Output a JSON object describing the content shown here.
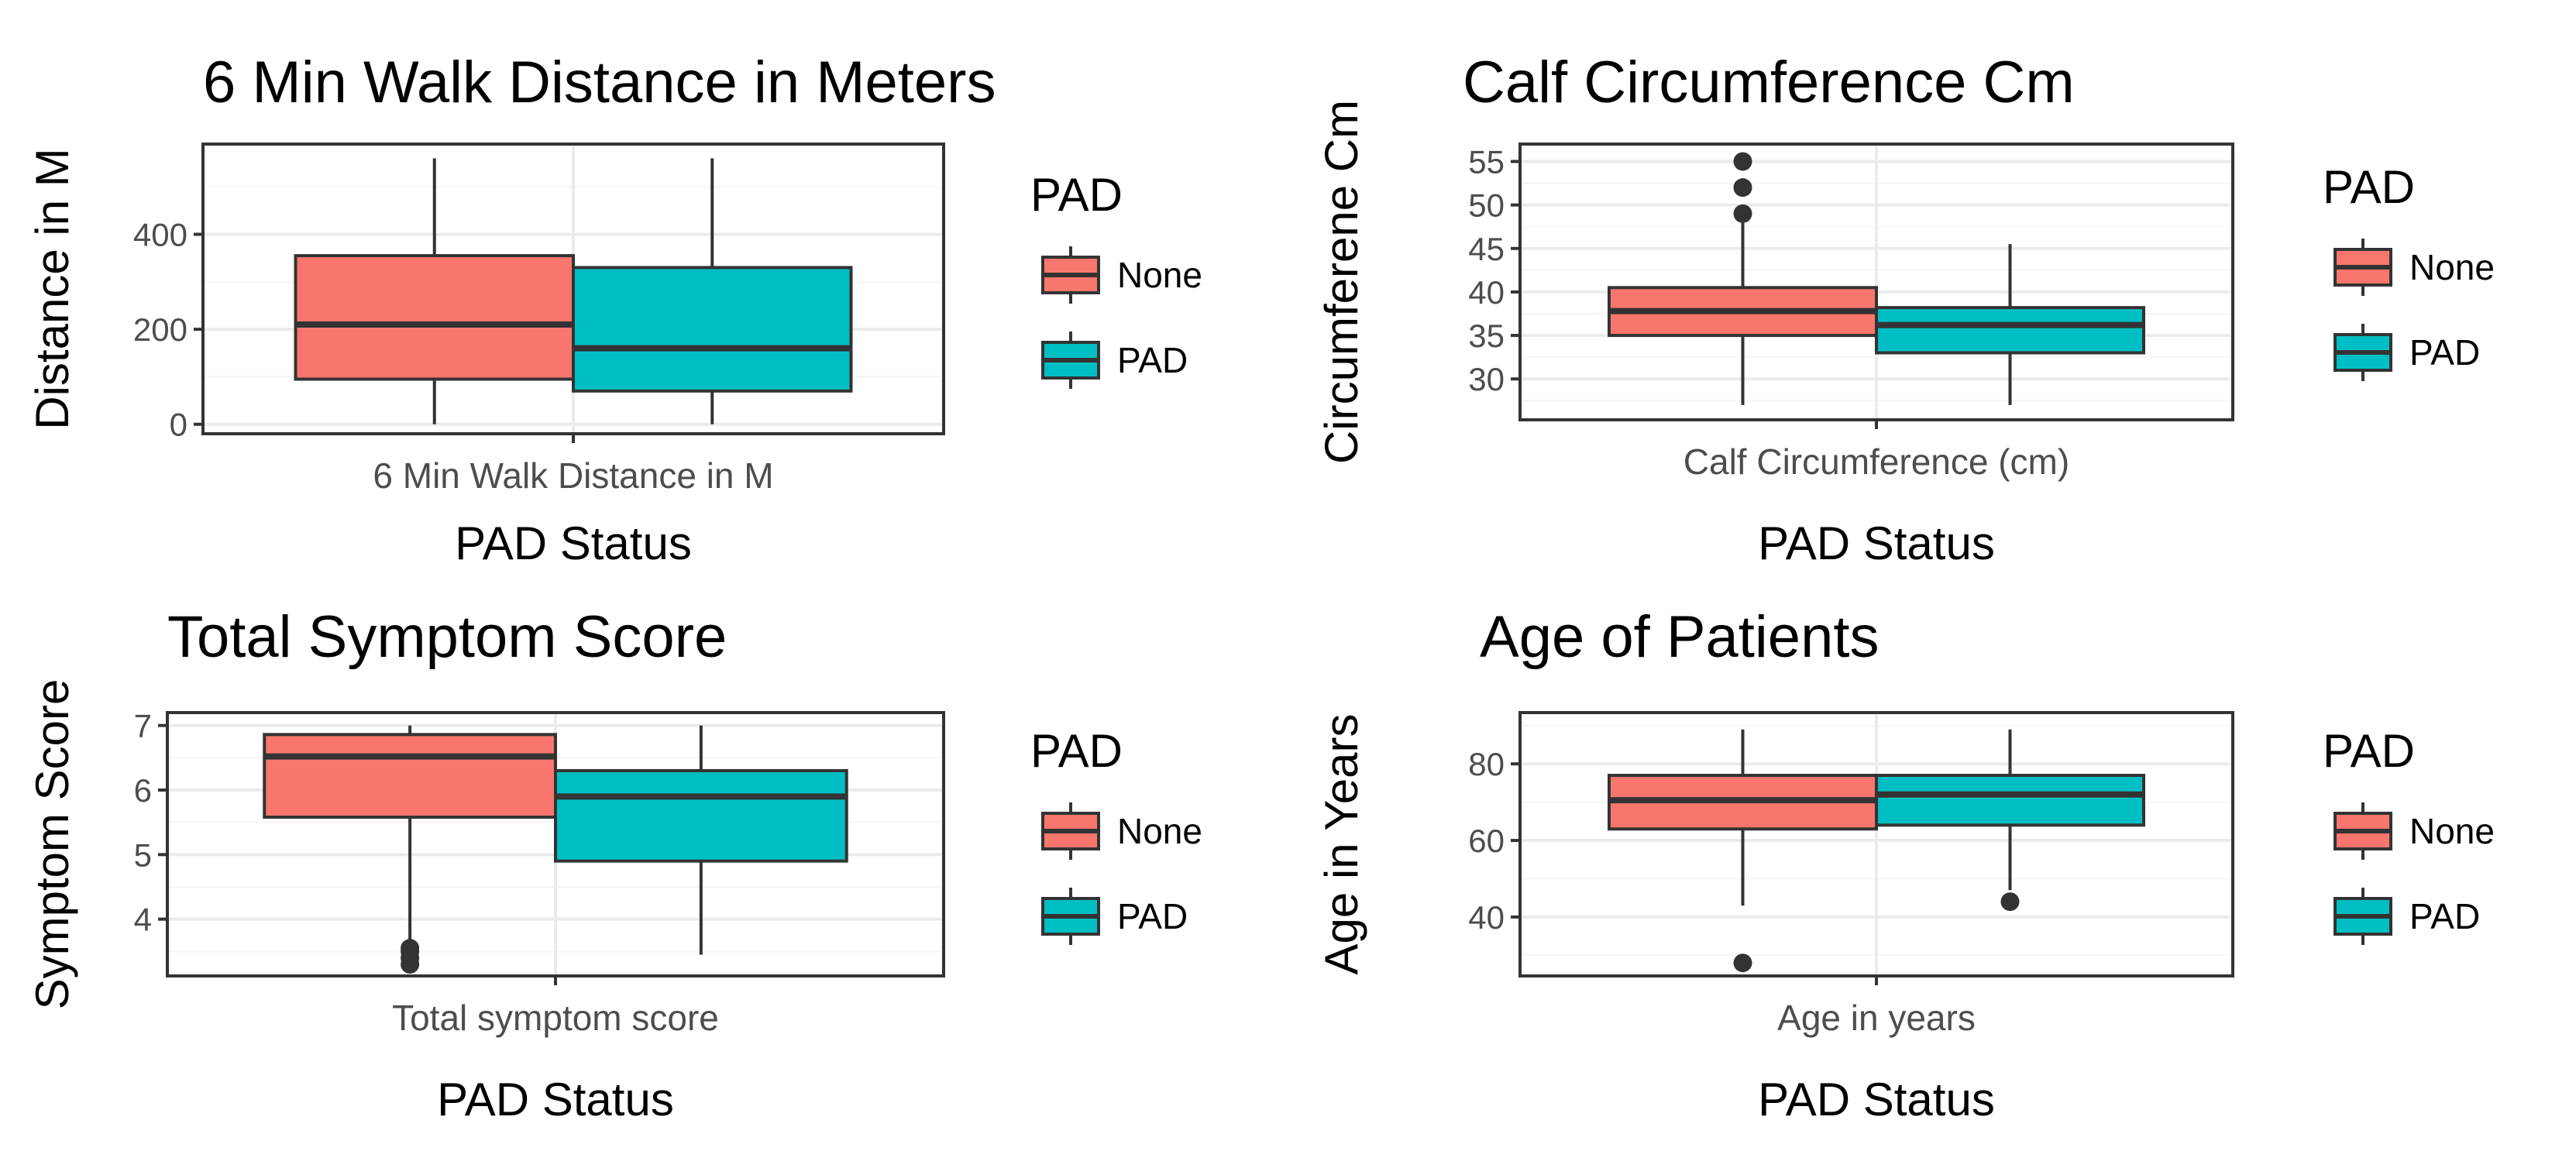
{
  "colors": {
    "none": "#F8766D",
    "pad": "#00BFC4",
    "outline": "#333333",
    "grid": "#EBEBEB",
    "gridMinor": "#F5F5F5"
  },
  "chart_data": [
    {
      "type": "boxplot",
      "title": "6 Min Walk Distance in Meters",
      "xlabel": "PAD Status",
      "ylabel": "Distance in M",
      "category": "6 Min Walk Distance in M",
      "ylim": [
        -20,
        590
      ],
      "yticks": [
        0,
        200,
        400
      ],
      "legend": {
        "title": "PAD",
        "items": [
          "None",
          "PAD"
        ],
        "placement": "right"
      },
      "series": [
        {
          "name": "None",
          "min": 0,
          "q1": 95,
          "median": 210,
          "q3": 355,
          "max": 560,
          "outliers": []
        },
        {
          "name": "PAD",
          "min": 0,
          "q1": 70,
          "median": 160,
          "q3": 330,
          "max": 560,
          "outliers": []
        }
      ]
    },
    {
      "type": "boxplot",
      "title": "Calf Circumference Cm",
      "xlabel": "PAD Status",
      "ylabel": "Circumferene Cm",
      "category": "Calf Circumference (cm)",
      "ylim": [
        25.3,
        57
      ],
      "yticks": [
        30,
        35,
        40,
        45,
        50,
        55
      ],
      "legend": {
        "title": "PAD",
        "items": [
          "None",
          "PAD"
        ],
        "placement": "right"
      },
      "series": [
        {
          "name": "None",
          "min": 27,
          "q1": 35,
          "median": 37.8,
          "q3": 40.5,
          "max": 48,
          "outliers": [
            49,
            52,
            55
          ]
        },
        {
          "name": "PAD",
          "min": 27,
          "q1": 33,
          "median": 36.2,
          "q3": 38.2,
          "max": 45.5,
          "outliers": []
        }
      ]
    },
    {
      "type": "boxplot",
      "title": "Total Symptom Score",
      "xlabel": "PAD Status",
      "ylabel": "Symptom Score",
      "category": "Total symptom score",
      "ylim": [
        3.12,
        7.2
      ],
      "yticks": [
        4,
        5,
        6,
        7
      ],
      "legend": {
        "title": "PAD",
        "items": [
          "None",
          "PAD"
        ],
        "placement": "right"
      },
      "series": [
        {
          "name": "None",
          "min": 3.6,
          "q1": 5.58,
          "median": 6.52,
          "q3": 6.86,
          "max": 7.0,
          "outliers": [
            3.3,
            3.4,
            3.5,
            3.55
          ]
        },
        {
          "name": "PAD",
          "min": 3.45,
          "q1": 4.9,
          "median": 5.9,
          "q3": 6.3,
          "max": 7.0,
          "outliers": []
        }
      ]
    },
    {
      "type": "boxplot",
      "title": "Age of Patients",
      "xlabel": "PAD Status",
      "ylabel": "Age in Years",
      "category": "Age in years",
      "ylim": [
        24.6,
        93.4
      ],
      "yticks": [
        40,
        60,
        80
      ],
      "legend": {
        "title": "PAD",
        "items": [
          "None",
          "PAD"
        ],
        "placement": "right"
      },
      "series": [
        {
          "name": "None",
          "min": 43,
          "q1": 63,
          "median": 70.5,
          "q3": 77,
          "max": 89,
          "outliers": [
            28
          ]
        },
        {
          "name": "PAD",
          "min": 47,
          "q1": 64,
          "median": 72,
          "q3": 77,
          "max": 89,
          "outliers": [
            44
          ]
        }
      ]
    }
  ]
}
